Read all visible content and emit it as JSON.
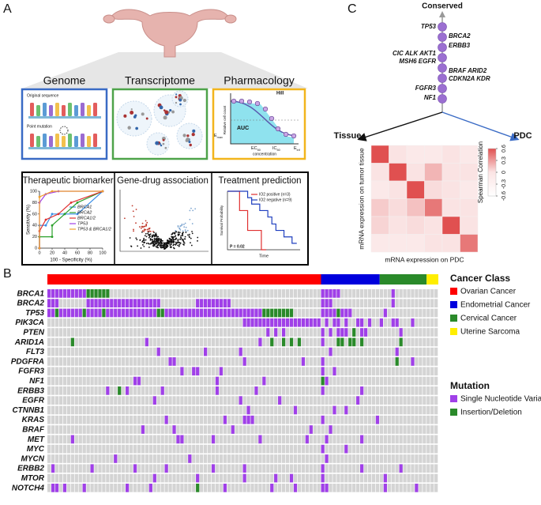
{
  "panel_labels": [
    "A",
    "B",
    "C"
  ],
  "panel_a": {
    "omics": [
      {
        "title": "Genome",
        "color": "#3a6bc5"
      },
      {
        "title": "Transcriptome",
        "color": "#4ea34a"
      },
      {
        "title": "Pharmacology",
        "color": "#f2b51c"
      }
    ],
    "genome": {
      "original": "Original sequence",
      "mutation": "Point mutation"
    },
    "pharmacology": {
      "hill": "Hill",
      "auc": "AUC",
      "y_label": "Relative cell count",
      "x_label": "concentration",
      "emax": {
        "base": "E",
        "sub": "max"
      },
      "ec50": {
        "base": "EC",
        "sub": "50"
      },
      "ic50": {
        "base": "IC",
        "sub": "50"
      },
      "einf": {
        "base": "E",
        "sub": "inf"
      }
    },
    "roc": {
      "title": "Therapeutic biomarker",
      "x_label": "100 - Specificity (%)",
      "y_label": "Sensitivity (%)",
      "xlim": [
        0,
        100
      ],
      "ylim": [
        0,
        100
      ],
      "xticks": [
        0,
        20,
        40,
        60,
        80,
        100
      ],
      "yticks": [
        0,
        20,
        40,
        60,
        80,
        100
      ],
      "series": [
        {
          "name": "BRCA1",
          "color": "#3a8ee6",
          "x": [
            0,
            0,
            10,
            20,
            40,
            60,
            100
          ],
          "y": [
            0,
            40,
            40,
            60,
            60,
            60,
            100
          ]
        },
        {
          "name": "BRCA2",
          "color": "#2aa02a",
          "x": [
            0,
            0,
            20,
            20,
            40,
            60,
            100
          ],
          "y": [
            0,
            20,
            20,
            40,
            60,
            80,
            100
          ]
        },
        {
          "name": "BRCA1/2",
          "color": "#e03030",
          "x": [
            0,
            0,
            10,
            30,
            50,
            100
          ],
          "y": [
            0,
            30,
            50,
            60,
            80,
            100
          ]
        },
        {
          "name": "TP53",
          "color": "#a040e8",
          "x": [
            0,
            0,
            10,
            30,
            100
          ],
          "y": [
            0,
            80,
            95,
            100,
            100
          ]
        },
        {
          "name": "TP53 & BRCA1/2",
          "color": "#f0a030",
          "x": [
            0,
            0,
            20,
            100
          ],
          "y": [
            0,
            90,
            100,
            100
          ]
        }
      ]
    },
    "volcano": {
      "title": "Gene-drug association"
    },
    "km": {
      "title": "Treatment prediction",
      "x_label": "Time",
      "y_label": "Survival Probability",
      "p_value": "P = 0.02",
      "xlim": [
        0,
        900
      ],
      "ylim": [
        0,
        1
      ],
      "series": [
        {
          "name": "IO2 positive (n=3)",
          "color": "#e03030",
          "x": [
            0,
            150,
            250,
            400,
            420
          ],
          "y": [
            1,
            0.67,
            0.33,
            0.33,
            0
          ]
        },
        {
          "name": "IO2 negative (n=9)",
          "color": "#1f3fbf",
          "x": [
            0,
            250,
            300,
            400,
            500,
            550,
            600,
            700,
            800
          ],
          "y": [
            1,
            0.89,
            0.78,
            0.67,
            0.56,
            0.44,
            0.33,
            0.22,
            0.11
          ]
        }
      ]
    }
  },
  "oncoprint": {
    "columns": 100,
    "genes": [
      "BRCA1",
      "BRCA2",
      "TP53",
      "PIK3CA",
      "PTEN",
      "ARID1A",
      "FLT3",
      "PDGFRA",
      "FGFR3",
      "NF1",
      "ERBB3",
      "EGFR",
      "CTNNB1",
      "KRAS",
      "BRAF",
      "MET",
      "MYC",
      "MYCN",
      "ERBB2",
      "MTOR",
      "NOTCH4"
    ],
    "cancer_class": {
      "title": "Cancer Class",
      "items": [
        {
          "name": "Ovarian Cancer",
          "color": "#ff0000",
          "count": 70
        },
        {
          "name": "Endometrial Cancer",
          "color": "#0000dd",
          "count": 15
        },
        {
          "name": "Cervical Cancer",
          "color": "#2a8a2a",
          "count": 12
        },
        {
          "name": "Uterine Sarcoma",
          "color": "#ffee00",
          "count": 3
        }
      ]
    },
    "mutation": {
      "title": "Mutation",
      "items": [
        {
          "name": "Single Nucleotide Variant",
          "color": "#a040e8"
        },
        {
          "name": "Insertion/Deletion",
          "color": "#2a8a2a"
        }
      ]
    },
    "rows": [
      [
        [
          0,
          10,
          0
        ],
        [
          10,
          6,
          1
        ],
        [
          70,
          5,
          0
        ],
        [
          88,
          1,
          0
        ]
      ],
      [
        [
          0,
          3,
          0
        ],
        [
          10,
          19,
          0
        ],
        [
          38,
          9,
          0
        ],
        [
          70,
          3,
          0
        ],
        [
          88,
          1,
          0
        ]
      ],
      [
        [
          0,
          2,
          0
        ],
        [
          2,
          1,
          1
        ],
        [
          3,
          6,
          0
        ],
        [
          9,
          1,
          1
        ],
        [
          10,
          4,
          0
        ],
        [
          14,
          1,
          1
        ],
        [
          15,
          13,
          0
        ],
        [
          28,
          2,
          1
        ],
        [
          30,
          25,
          0
        ],
        [
          55,
          8,
          1
        ],
        [
          70,
          4,
          0
        ],
        [
          74,
          1,
          1
        ],
        [
          75,
          3,
          0
        ],
        [
          86,
          1,
          0
        ]
      ],
      [
        [
          50,
          20,
          0
        ],
        [
          71,
          1,
          0
        ],
        [
          73,
          2,
          0
        ],
        [
          76,
          1,
          0
        ],
        [
          79,
          2,
          0
        ],
        [
          82,
          1,
          0
        ],
        [
          85,
          1,
          0
        ],
        [
          88,
          2,
          0
        ],
        [
          93,
          1,
          0
        ]
      ],
      [
        [
          56,
          1,
          0
        ],
        [
          58,
          1,
          0
        ],
        [
          60,
          1,
          0
        ],
        [
          70,
          1,
          0
        ],
        [
          72,
          1,
          0
        ],
        [
          74,
          3,
          0
        ],
        [
          78,
          1,
          1
        ],
        [
          80,
          2,
          0
        ],
        [
          90,
          1,
          0
        ]
      ],
      [
        [
          6,
          1,
          1
        ],
        [
          25,
          1,
          0
        ],
        [
          54,
          1,
          0
        ],
        [
          57,
          1,
          1
        ],
        [
          60,
          1,
          1
        ],
        [
          62,
          1,
          1
        ],
        [
          64,
          1,
          1
        ],
        [
          70,
          1,
          0
        ],
        [
          74,
          2,
          1
        ],
        [
          77,
          2,
          1
        ],
        [
          80,
          1,
          1
        ],
        [
          90,
          1,
          1
        ]
      ],
      [
        [
          28,
          1,
          0
        ],
        [
          40,
          1,
          0
        ],
        [
          49,
          1,
          0
        ],
        [
          72,
          1,
          0
        ],
        [
          89,
          1,
          0
        ]
      ],
      [
        [
          31,
          2,
          0
        ],
        [
          50,
          1,
          0
        ],
        [
          65,
          1,
          0
        ],
        [
          70,
          1,
          0
        ],
        [
          89,
          1,
          1
        ],
        [
          93,
          1,
          0
        ]
      ],
      [
        [
          34,
          1,
          0
        ],
        [
          37,
          2,
          0
        ],
        [
          44,
          1,
          0
        ],
        [
          70,
          1,
          0
        ],
        [
          73,
          1,
          0
        ]
      ],
      [
        [
          22,
          2,
          0
        ],
        [
          43,
          1,
          0
        ],
        [
          55,
          1,
          0
        ],
        [
          70,
          1,
          1
        ],
        [
          71,
          1,
          0
        ]
      ],
      [
        [
          15,
          1,
          0
        ],
        [
          18,
          1,
          1
        ],
        [
          20,
          1,
          0
        ],
        [
          29,
          1,
          0
        ],
        [
          43,
          1,
          0
        ],
        [
          53,
          1,
          0
        ],
        [
          70,
          1,
          0
        ],
        [
          80,
          1,
          0
        ]
      ],
      [
        [
          27,
          1,
          0
        ],
        [
          49,
          1,
          0
        ],
        [
          59,
          1,
          0
        ],
        [
          79,
          1,
          0
        ]
      ],
      [
        [
          51,
          1,
          0
        ],
        [
          63,
          1,
          0
        ],
        [
          73,
          1,
          0
        ],
        [
          76,
          1,
          0
        ]
      ],
      [
        [
          30,
          1,
          0
        ],
        [
          45,
          1,
          0
        ],
        [
          50,
          3,
          0
        ],
        [
          70,
          1,
          0
        ],
        [
          84,
          1,
          0
        ]
      ],
      [
        [
          24,
          1,
          0
        ],
        [
          32,
          1,
          0
        ],
        [
          47,
          1,
          0
        ],
        [
          67,
          1,
          0
        ],
        [
          72,
          1,
          0
        ]
      ],
      [
        [
          6,
          1,
          0
        ],
        [
          33,
          2,
          0
        ],
        [
          42,
          1,
          0
        ],
        [
          54,
          1,
          0
        ],
        [
          66,
          1,
          0
        ],
        [
          71,
          1,
          0
        ],
        [
          80,
          1,
          0
        ]
      ],
      [
        [
          70,
          1,
          0
        ],
        [
          76,
          1,
          0
        ]
      ],
      [
        [
          17,
          1,
          0
        ],
        [
          36,
          1,
          0
        ],
        [
          71,
          1,
          0
        ]
      ],
      [
        [
          1,
          1,
          0
        ],
        [
          11,
          1,
          0
        ],
        [
          22,
          1,
          0
        ],
        [
          30,
          1,
          0
        ],
        [
          42,
          1,
          0
        ],
        [
          50,
          1,
          0
        ],
        [
          70,
          1,
          0
        ],
        [
          80,
          1,
          0
        ],
        [
          90,
          1,
          0
        ]
      ],
      [
        [
          27,
          1,
          0
        ],
        [
          38,
          1,
          0
        ],
        [
          50,
          1,
          0
        ],
        [
          58,
          1,
          0
        ],
        [
          62,
          1,
          0
        ],
        [
          70,
          1,
          0
        ],
        [
          86,
          1,
          0
        ]
      ],
      [
        [
          1,
          2,
          0
        ],
        [
          4,
          1,
          0
        ],
        [
          9,
          1,
          0
        ],
        [
          20,
          1,
          0
        ],
        [
          26,
          1,
          0
        ],
        [
          38,
          1,
          1
        ],
        [
          45,
          1,
          0
        ],
        [
          57,
          1,
          0
        ],
        [
          63,
          1,
          0
        ],
        [
          70,
          2,
          0
        ],
        [
          86,
          1,
          0
        ],
        [
          94,
          1,
          0
        ]
      ]
    ]
  },
  "panel_c": {
    "conserved": "Conserved",
    "nodes": [
      "TP53",
      "BRCA2",
      "ERBB3",
      "CIC ALK AKT1",
      "MSH6 EGFR",
      "BRAF ARID2",
      "CDKN2A KDR",
      "FGFR3",
      "NF1"
    ],
    "tissue": "Tissue",
    "pdc": "PDC",
    "heatmap": {
      "y_label": "mRNA expression on tumor tissue",
      "x_label": "mRNA expression on PDC",
      "colorbar_label": "Spearman Correlation",
      "clim": [
        -0.6,
        0.6
      ],
      "ticks": [
        0.6,
        0.3,
        0,
        -0.3,
        -0.6
      ],
      "values": [
        [
          0.6,
          0.05,
          0,
          0,
          0.05,
          0
        ],
        [
          0.05,
          0.6,
          0.05,
          0.3,
          0.05,
          0.05
        ],
        [
          0,
          0.05,
          0.6,
          0.1,
          0.05,
          0
        ],
        [
          0.2,
          0.1,
          0.25,
          0.5,
          0.05,
          0.05
        ],
        [
          0.15,
          0.05,
          0.1,
          0.05,
          0.6,
          0.05
        ],
        [
          0,
          0,
          0,
          0.05,
          0.05,
          0.5
        ]
      ]
    }
  }
}
